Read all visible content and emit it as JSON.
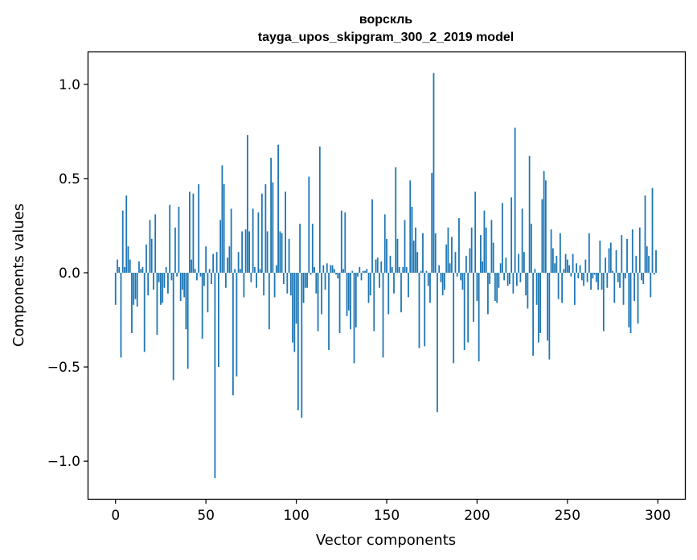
{
  "chart_data": {
    "type": "bar",
    "title_line1": "ворскль",
    "title_line2": "tayga_upos_skipgram_300_2_2019 model",
    "xlabel": "Vector components",
    "ylabel": "Components values",
    "xlim": [
      -15,
      315
    ],
    "ylim": [
      -1.2,
      1.17
    ],
    "x_ticks": [
      0,
      50,
      100,
      150,
      200,
      250,
      300
    ],
    "y_ticks": [
      -1.0,
      -0.5,
      0.0,
      0.5,
      1.0
    ],
    "y_tick_labels": [
      "−1.0",
      "−0.5",
      "0.0",
      "0.5",
      "1.0"
    ],
    "grid": false,
    "bar_color": "#1f77b4",
    "values": [
      -0.17,
      0.07,
      0.03,
      -0.45,
      0.33,
      0.03,
      0.41,
      0.14,
      0.07,
      -0.32,
      -0.17,
      -0.14,
      -0.18,
      0.06,
      0.02,
      0.03,
      -0.42,
      0.15,
      -0.12,
      0.28,
      0.18,
      -0.09,
      0.31,
      -0.33,
      -0.05,
      -0.17,
      -0.16,
      -0.08,
      0.03,
      -0.11,
      0.36,
      -0.04,
      -0.57,
      0.24,
      -0.02,
      0.35,
      -0.15,
      -0.09,
      -0.13,
      -0.3,
      -0.51,
      0.43,
      0.07,
      0.42,
      0.02,
      -0.04,
      0.47,
      -0.02,
      -0.35,
      -0.07,
      0.14,
      -0.21,
      0.02,
      -0.06,
      0.1,
      -1.09,
      0.11,
      -0.5,
      0.28,
      0.57,
      0.47,
      -0.08,
      0.08,
      0.14,
      0.34,
      -0.65,
      0.02,
      -0.55,
      0.11,
      0.02,
      0.22,
      -0.13,
      0.23,
      0.73,
      0.22,
      -0.05,
      0.34,
      0.03,
      -0.08,
      0.32,
      0.02,
      0.42,
      -0.12,
      0.47,
      0.22,
      -0.3,
      0.61,
      0.48,
      -0.13,
      0.04,
      0.68,
      0.22,
      0.21,
      -0.06,
      0.43,
      -0.11,
      0.18,
      -0.12,
      -0.37,
      -0.42,
      -0.27,
      -0.73,
      0.26,
      -0.77,
      -0.16,
      -0.08,
      -0.08,
      0.51,
      -0.01,
      0.26,
      0.03,
      -0.11,
      -0.31,
      0.67,
      -0.22,
      0.04,
      -0.09,
      0.05,
      -0.41,
      0.04,
      0.04,
      0.02,
      -0.01,
      -0.03,
      -0.32,
      0.33,
      0.02,
      0.32,
      -0.23,
      -0.2,
      -0.3,
      0.01,
      -0.48,
      -0.29,
      -0.02,
      0.03,
      -0.04,
      0.01,
      0.01,
      0.02,
      -0.16,
      -0.12,
      0.39,
      -0.31,
      0.07,
      0.08,
      -0.08,
      0.06,
      -0.45,
      0.31,
      0.18,
      -0.22,
      0.09,
      0.03,
      -0.11,
      0.56,
      0.18,
      0.03,
      -0.21,
      0.03,
      0.28,
      0.03,
      -0.13,
      0.49,
      0.35,
      0.17,
      0.24,
      0.11,
      -0.4,
      0.01,
      0.21,
      -0.39,
      0.01,
      -0.07,
      -0.16,
      0.53,
      1.06,
      0.21,
      -0.74,
      0.04,
      -0.05,
      -0.12,
      -0.09,
      0.15,
      0.24,
      0.05,
      0.19,
      -0.48,
      0.11,
      -0.02,
      0.29,
      -0.04,
      -0.09,
      -0.41,
      0.09,
      -0.37,
      0.13,
      0.24,
      -0.26,
      0.43,
      -0.15,
      -0.47,
      0.2,
      0.06,
      0.33,
      0.24,
      -0.22,
      -0.06,
      0.28,
      0.16,
      -0.15,
      -0.16,
      -0.08,
      0.05,
      0.37,
      -0.04,
      0.08,
      -0.07,
      -0.06,
      0.4,
      -0.11,
      0.77,
      -0.07,
      0.1,
      -0.05,
      0.34,
      0.11,
      -0.12,
      -0.19,
      0.62,
      0.26,
      -0.44,
      0.02,
      -0.17,
      -0.37,
      -0.32,
      0.39,
      0.54,
      0.49,
      -0.36,
      -0.46,
      0.23,
      0.13,
      0.05,
      0.09,
      -0.14,
      0.21,
      -0.16,
      0.02,
      0.1,
      0.07,
      0.04,
      -0.02,
      0.1,
      -0.17,
      0.05,
      -0.03,
      0.04,
      -0.04,
      -0.07,
      0.07,
      -0.05,
      0.21,
      -0.09,
      -0.03,
      -0.01,
      -0.05,
      -0.09,
      0.17,
      -0.09,
      -0.31,
      0.08,
      -0.08,
      0.13,
      0.16,
      0.01,
      -0.16,
      0.12,
      -0.05,
      -0.08,
      0.2,
      -0.17,
      -0.03,
      0.18,
      -0.29,
      -0.32,
      0.23,
      -0.15,
      0.09,
      -0.27,
      0.24,
      -0.04,
      -0.06,
      0.41,
      0.14,
      0.09,
      -0.13,
      0.45,
      -0.01,
      0.12
    ]
  }
}
